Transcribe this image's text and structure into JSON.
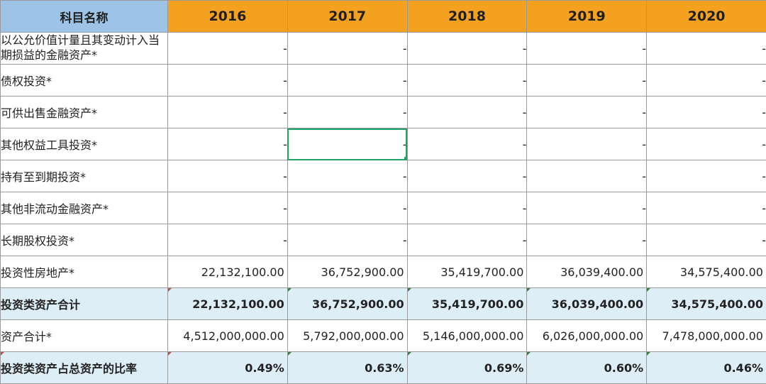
{
  "header": {
    "name_col": "科目名称",
    "years": [
      "2016",
      "2017",
      "2018",
      "2019",
      "2020"
    ]
  },
  "rows": [
    {
      "label": "以公允价值计量且其变动计入当期损益的金融资产*",
      "values": [
        "-",
        "-",
        "-",
        "-",
        "-"
      ]
    },
    {
      "label": "债权投资*",
      "values": [
        "-",
        "-",
        "-",
        "-",
        "-"
      ]
    },
    {
      "label": "可供出售金融资产*",
      "values": [
        "-",
        "-",
        "-",
        "-",
        "-"
      ]
    },
    {
      "label": "其他权益工具投资*",
      "values": [
        "-",
        "-",
        "-",
        "-",
        "-"
      ]
    },
    {
      "label": "持有至到期投资*",
      "values": [
        "-",
        "-",
        "-",
        "-",
        "-"
      ]
    },
    {
      "label": "其他非流动金融资产*",
      "values": [
        "-",
        "-",
        "-",
        "-",
        "-"
      ]
    },
    {
      "label": "长期股权投资*",
      "values": [
        "-",
        "-",
        "-",
        "-",
        "-"
      ]
    },
    {
      "label": "投资性房地产*",
      "values": [
        "22,132,100.00",
        "36,752,900.00",
        "35,419,700.00",
        "36,039,400.00",
        "34,575,400.00"
      ]
    },
    {
      "label": "投资类资产合计",
      "values": [
        "22,132,100.00",
        "36,752,900.00",
        "35,419,700.00",
        "36,039,400.00",
        "34,575,400.00"
      ]
    },
    {
      "label": "资产合计*",
      "values": [
        "4,512,000,000.00",
        "5,792,000,000.00",
        "5,146,000,000.00",
        "6,026,000,000.00",
        "7,478,000,000.00"
      ]
    },
    {
      "label": "投资类资产占总资产的比率",
      "values": [
        "0.49%",
        "0.63%",
        "0.69%",
        "0.60%",
        "0.46%"
      ]
    }
  ],
  "colors": {
    "name_header_bg": "#9dc3e6",
    "year_header_bg": "#f4a120",
    "summary_row_bg": "#ddeef6",
    "selection": "#21a366"
  }
}
